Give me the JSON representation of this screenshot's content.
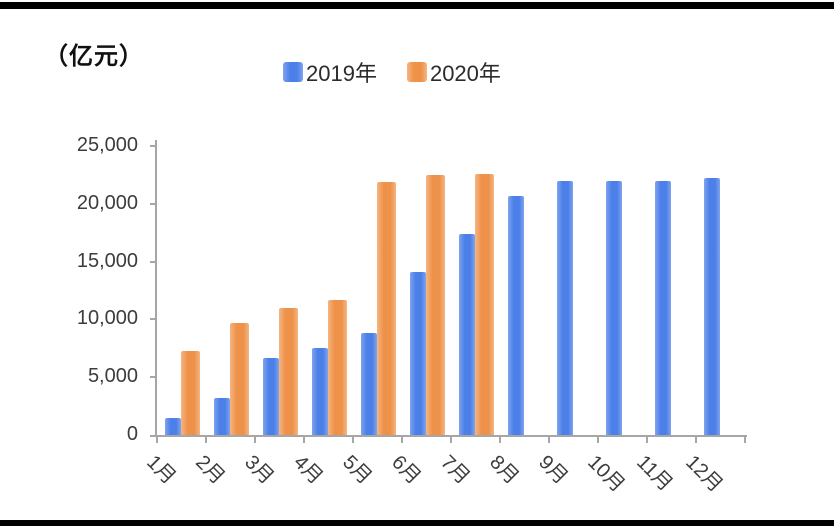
{
  "page": {
    "top_border_color": "#000000",
    "bottom_border_color": "#000000",
    "background": "#ffffff"
  },
  "unit_label": "（亿元）",
  "legend": {
    "items": [
      {
        "label": "2019年",
        "color": "#4C80E8",
        "color_light": "#7FA3EF"
      },
      {
        "label": "2020年",
        "color": "#EE9149",
        "color_light": "#F4B582"
      }
    ]
  },
  "chart_data": {
    "type": "bar",
    "title": "",
    "unit": "（亿元）",
    "categories": [
      "1月",
      "2月",
      "3月",
      "4月",
      "5月",
      "6月",
      "7月",
      "8月",
      "9月",
      "10月",
      "11月",
      "12月"
    ],
    "series": [
      {
        "name": "2019年",
        "color": "#4C80E8",
        "color_light": "#7FA3EF",
        "values": [
          1500,
          3200,
          6700,
          7500,
          8800,
          14100,
          17400,
          20700,
          22000,
          22000,
          22000,
          22200
        ]
      },
      {
        "name": "2020年",
        "color": "#EE9149",
        "color_light": "#F4B582",
        "values": [
          7300,
          9700,
          11000,
          11700,
          21900,
          22500,
          22600,
          null,
          null,
          null,
          null,
          null
        ]
      }
    ],
    "ylim": [
      0,
      25000
    ],
    "ytick_interval": 5000,
    "ytick_labels": [
      "0",
      "5,000",
      "10,000",
      "15,000",
      "20,000",
      "25,000"
    ],
    "grid": false,
    "legend_position": "top-center",
    "axis_color": "#a6a6a6"
  }
}
